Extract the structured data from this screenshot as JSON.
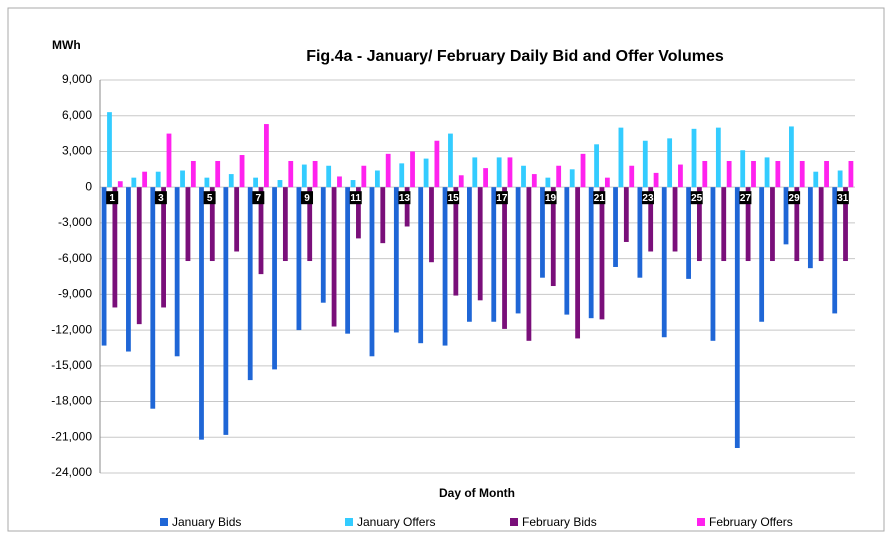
{
  "chart_data": {
    "type": "bar",
    "title": "Fig.4a - January/ February Daily Bid and Offer Volumes",
    "y_label": "MWh",
    "x_label": "Day of Month",
    "categories": [
      "1",
      null,
      "3",
      null,
      "5",
      null,
      "7",
      null,
      "9",
      null,
      "11",
      null,
      "13",
      null,
      "15",
      null,
      "17",
      null,
      "19",
      null,
      "21",
      null,
      "23",
      null,
      "25",
      null,
      "27",
      null,
      "29",
      null,
      "31"
    ],
    "series": [
      {
        "name": "January Bids",
        "color": "#1f66d6",
        "values": [
          -13300,
          -13800,
          -18600,
          -14200,
          -21200,
          -20800,
          -16200,
          -15300,
          -12000,
          -9700,
          -12300,
          -14200,
          -12200,
          -13100,
          -13300,
          -11300,
          -11300,
          -10600,
          -7600,
          -10700,
          -11000,
          -6700,
          -7600,
          -12600,
          -7700,
          -12900,
          -21900,
          -11300,
          -4800,
          -6800,
          -10600
        ]
      },
      {
        "name": "January Offers",
        "color": "#33ccff",
        "values": [
          6300,
          800,
          1300,
          1400,
          800,
          1100,
          800,
          600,
          1900,
          1800,
          600,
          1400,
          2000,
          2400,
          4500,
          2500,
          2500,
          1800,
          800,
          1500,
          3600,
          5000,
          3900,
          4100,
          4900,
          5000,
          3100,
          2500,
          5100,
          1300,
          1400
        ]
      },
      {
        "name": "February Bids",
        "color": "#7a0f7a",
        "values": [
          -10100,
          -11500,
          -10100,
          -6200,
          -6200,
          -5400,
          -7300,
          -6200,
          -6200,
          -11700,
          -4300,
          -4700,
          -3300,
          -6300,
          -9100,
          -9500,
          -11900,
          -12900,
          -8300,
          -12700,
          -11100,
          -4600,
          -5400,
          -5400,
          -6200,
          -6200,
          -6200,
          -6200,
          -6200,
          -6200,
          -6200
        ]
      },
      {
        "name": "February Offers",
        "color": "#ff22ee",
        "values": [
          500,
          1300,
          4500,
          2200,
          2200,
          2700,
          5300,
          2200,
          2200,
          900,
          1800,
          2800,
          3000,
          3900,
          1000,
          1600,
          2500,
          1100,
          1800,
          2800,
          800,
          1800,
          1200,
          1900,
          2200,
          2200,
          2200,
          2200,
          2200,
          2200,
          2200
        ]
      }
    ],
    "ylim": [
      -24000,
      9000
    ],
    "yticks": [
      {
        "value": 9000,
        "label": "9,000"
      },
      {
        "value": 6000,
        "label": "6,000"
      },
      {
        "value": 3000,
        "label": "3,000"
      },
      0,
      {
        "value": -3000,
        "label": "-3,000"
      },
      {
        "value": -6000,
        "label": "-6,000"
      },
      {
        "value": -9000,
        "label": "-9,000"
      },
      {
        "value": -12000,
        "label": "-12,000"
      },
      {
        "value": -15000,
        "label": "-15,000"
      },
      {
        "value": -18000,
        "label": "-18,000"
      },
      {
        "value": -21000,
        "label": "-21,000"
      },
      {
        "value": -24000,
        "label": "-24,000"
      }
    ],
    "grid": true,
    "legend": "bottom"
  }
}
